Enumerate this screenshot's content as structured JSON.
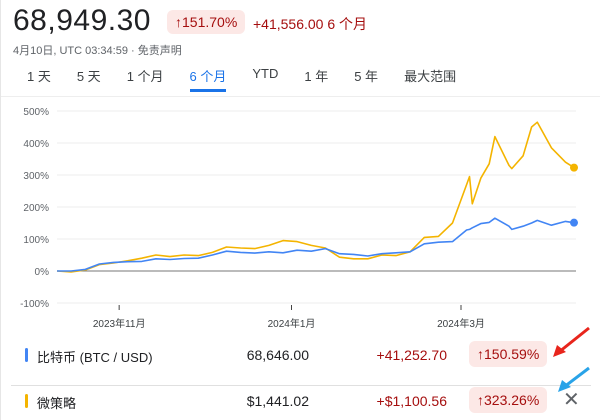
{
  "header": {
    "price": "68,949.30",
    "pct_change": "↑151.70%",
    "abs_change": "+41,556.00 6 个月",
    "subtitle": "4月10日, UTC 03:34:59 · 免责声明"
  },
  "tabs": [
    {
      "label": "1 天"
    },
    {
      "label": "5 天"
    },
    {
      "label": "1 个月"
    },
    {
      "label": "6 个月",
      "active": true
    },
    {
      "label": "YTD"
    },
    {
      "label": "1 年"
    },
    {
      "label": "5 年"
    },
    {
      "label": "最大范围"
    }
  ],
  "chart_data": {
    "type": "line",
    "ylim": [
      -100,
      500
    ],
    "yticks": [
      -100,
      0,
      100,
      200,
      300,
      400,
      500
    ],
    "ytick_labels": [
      "-100%",
      "0%",
      "100%",
      "200%",
      "300%",
      "400%",
      "500%"
    ],
    "xlim": [
      "2023-10-10",
      "2024-04-10"
    ],
    "xticks": [
      "2023-11-01",
      "2024-01-01",
      "2024-03-01"
    ],
    "xtick_labels": [
      "2023年11月",
      "2024年1月",
      "2024年3月"
    ],
    "grid": true,
    "x": [
      "2023-10-10",
      "2023-10-15",
      "2023-10-20",
      "2023-10-25",
      "2023-10-30",
      "2023-11-04",
      "2023-11-09",
      "2023-11-14",
      "2023-11-19",
      "2023-11-24",
      "2023-11-29",
      "2023-12-04",
      "2023-12-09",
      "2023-12-14",
      "2023-12-19",
      "2023-12-24",
      "2023-12-29",
      "2024-01-03",
      "2024-01-08",
      "2024-01-13",
      "2024-01-18",
      "2024-01-23",
      "2024-01-28",
      "2024-02-02",
      "2024-02-07",
      "2024-02-12",
      "2024-02-17",
      "2024-02-22",
      "2024-02-27",
      "2024-03-03",
      "2024-03-04",
      "2024-03-05",
      "2024-03-08",
      "2024-03-11",
      "2024-03-13",
      "2024-03-18",
      "2024-03-19",
      "2024-03-23",
      "2024-03-26",
      "2024-03-28",
      "2024-04-02",
      "2024-04-07",
      "2024-04-10"
    ],
    "series": [
      {
        "name": "比特币 (BTC / USD)",
        "color": "#4285f4",
        "values": [
          0,
          0,
          5,
          22,
          27,
          29,
          30,
          38,
          36,
          39,
          40,
          50,
          62,
          58,
          56,
          60,
          57,
          65,
          62,
          70,
          54,
          52,
          47,
          54,
          57,
          60,
          85,
          90,
          92,
          128,
          130,
          135,
          148,
          152,
          165,
          140,
          130,
          140,
          150,
          158,
          143,
          155,
          151
        ]
      },
      {
        "name": "微策略",
        "color": "#f4b400",
        "values": [
          0,
          -3,
          3,
          20,
          25,
          32,
          40,
          50,
          45,
          50,
          48,
          58,
          75,
          72,
          70,
          80,
          95,
          92,
          80,
          72,
          43,
          38,
          38,
          50,
          48,
          60,
          105,
          108,
          150,
          270,
          295,
          210,
          290,
          335,
          420,
          330,
          320,
          360,
          450,
          465,
          385,
          340,
          323
        ]
      }
    ]
  },
  "rows": [
    {
      "name": "比特币 (BTC / USD)",
      "value": "68,646.00",
      "abs": "+41,252.70",
      "pct": "↑150.59%",
      "color": "#4285f4"
    },
    {
      "name": "微策略",
      "value": "$1,441.02",
      "abs": "+$1,100.56",
      "pct": "↑323.26%",
      "color": "#f4b400",
      "close": "✕"
    }
  ],
  "annotations": {
    "arrow_colors": [
      "#e8251c",
      "#29a3e8"
    ]
  }
}
